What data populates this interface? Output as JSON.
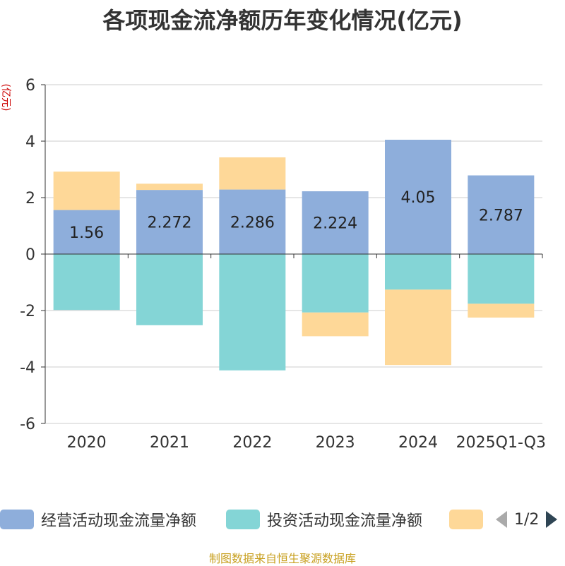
{
  "chart_data": {
    "type": "bar",
    "stacked": true,
    "title": "各项现金流净额历年变化情况(亿元)",
    "ylabel": "(亿元)",
    "xlabel": "",
    "categories": [
      "2020",
      "2021",
      "2022",
      "2023",
      "2024",
      "2025Q1-Q3"
    ],
    "ylim": [
      -6,
      6
    ],
    "yticks": [
      -6,
      -4,
      -2,
      0,
      2,
      4,
      6
    ],
    "series": [
      {
        "name": "经营活动现金流量净额",
        "color": "#8eaedb",
        "values": [
          1.56,
          2.272,
          2.286,
          2.224,
          4.05,
          2.787
        ],
        "labels": [
          "1.56",
          "2.272",
          "2.286",
          "2.224",
          "4.05",
          "2.787"
        ]
      },
      {
        "name": "投资活动现金流量净额",
        "color": "#84d5d6",
        "values": [
          -1.98,
          -2.52,
          -4.12,
          -2.07,
          -1.26,
          -1.76
        ]
      },
      {
        "name": "",
        "color": "#fed898",
        "values": [
          1.36,
          0.22,
          1.14,
          -0.84,
          -2.67,
          -0.49
        ]
      }
    ],
    "grid": true,
    "legend_position": "bottom"
  },
  "legend": {
    "page": "1/2"
  },
  "footer": "制图数据来自恒生聚源数据库"
}
